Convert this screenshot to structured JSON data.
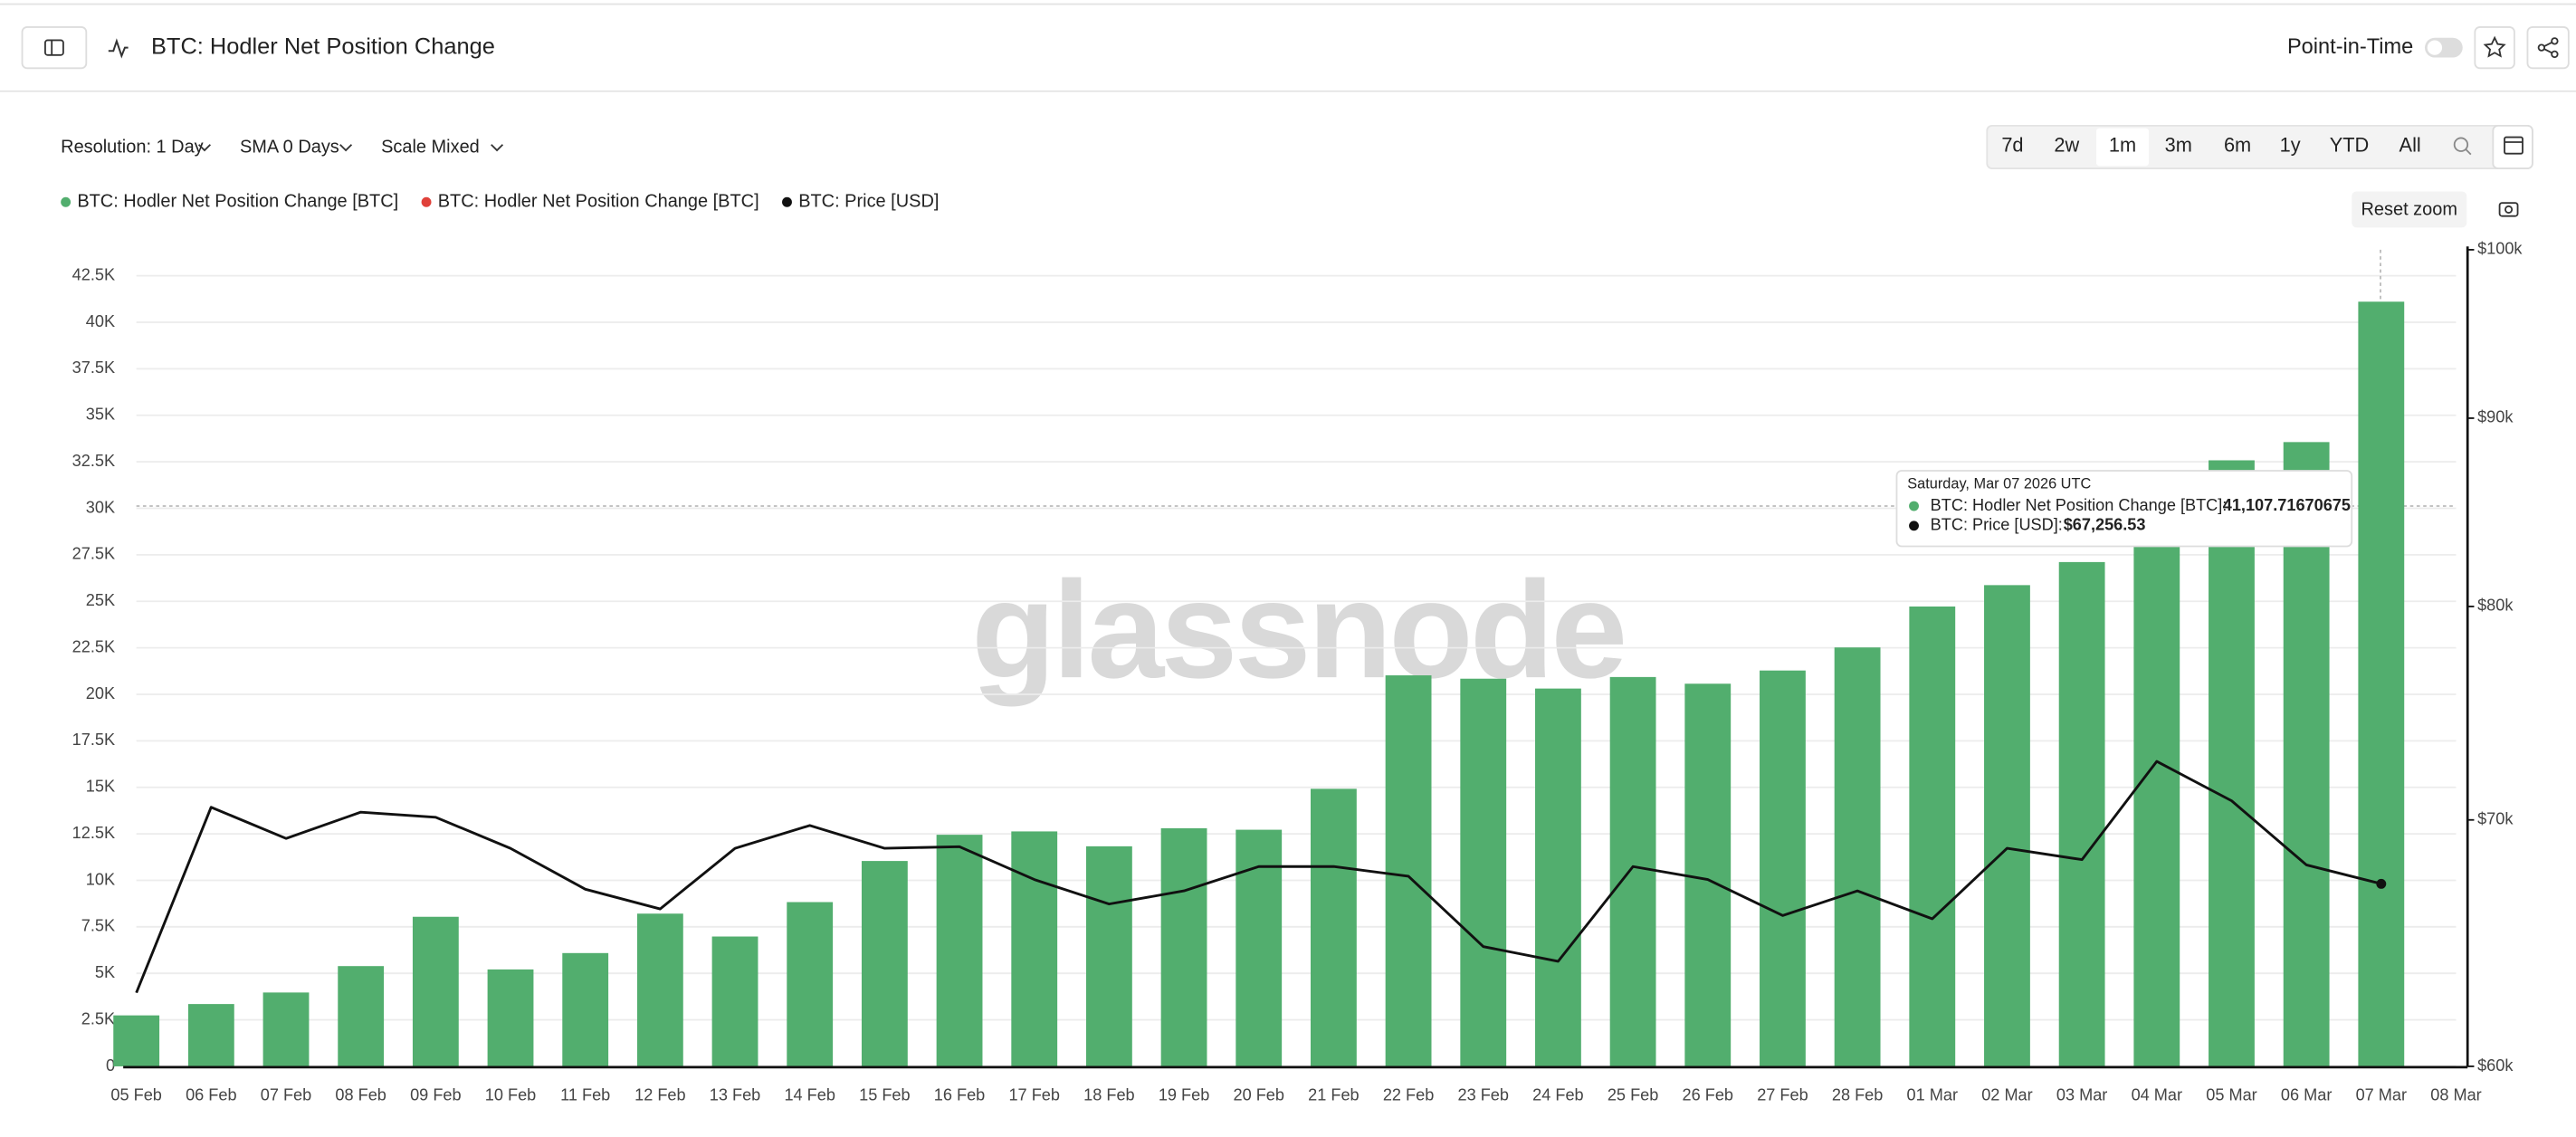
{
  "header": {
    "title": "BTC: Hodler Net Position Change",
    "point_in_time": "Point-in-Time"
  },
  "controls": {
    "resolution": "Resolution: 1 Day",
    "sma": "SMA 0 Days",
    "scale": "Scale Mixed",
    "ranges": [
      "7d",
      "2w",
      "1m",
      "3m",
      "6m",
      "1y",
      "YTD",
      "All"
    ],
    "active_range": "1m",
    "reset_zoom": "Reset zoom"
  },
  "watermark": "glassnode",
  "tooltip": {
    "title": "Saturday, Mar 07 2026 UTC",
    "rows": [
      {
        "name": "BTC: Hodler Net Position Change [BTC]:",
        "value": "41,107.71670675"
      },
      {
        "name": "BTC: Price [USD]:",
        "value": "$67,256.53"
      }
    ]
  },
  "chart_data": {
    "type": "bar",
    "categories": [
      "05 Feb",
      "06 Feb",
      "07 Feb",
      "08 Feb",
      "09 Feb",
      "10 Feb",
      "11 Feb",
      "12 Feb",
      "13 Feb",
      "14 Feb",
      "15 Feb",
      "16 Feb",
      "17 Feb",
      "18 Feb",
      "19 Feb",
      "20 Feb",
      "21 Feb",
      "22 Feb",
      "23 Feb",
      "24 Feb",
      "25 Feb",
      "26 Feb",
      "27 Feb",
      "28 Feb",
      "01 Mar",
      "02 Mar",
      "03 Mar",
      "04 Mar",
      "05 Mar",
      "06 Mar",
      "07 Mar",
      "08 Mar"
    ],
    "series": [
      {
        "name": "BTC: Hodler Net Position Change [BTC]",
        "color": "#52ae6e",
        "type": "bar",
        "values": [
          2740,
          3350,
          3970,
          5390,
          8040,
          5210,
          6090,
          8210,
          6980,
          8830,
          11040,
          12450,
          12630,
          11830,
          12800,
          12720,
          14920,
          21020,
          20840,
          20310,
          20930,
          20570,
          21280,
          22520,
          24720,
          25870,
          27110,
          28600,
          32580,
          33560,
          41107.71670675,
          null
        ]
      },
      {
        "name": "BTC: Hodler Net Position Change [BTC]",
        "color": "#e0413a",
        "type": "bar",
        "values": [
          null,
          null,
          null,
          null,
          null,
          null,
          null,
          null,
          null,
          null,
          null,
          null,
          null,
          null,
          null,
          null,
          null,
          null,
          null,
          null,
          null,
          null,
          null,
          null,
          null,
          null,
          null,
          null,
          null,
          null,
          null,
          null
        ]
      },
      {
        "name": "BTC: Price [USD]",
        "color": "#111111",
        "type": "line",
        "axis": "y2",
        "values": [
          62830,
          70560,
          69190,
          70340,
          70120,
          68770,
          67030,
          66210,
          68770,
          69760,
          68770,
          68840,
          67440,
          66410,
          66960,
          67990,
          67990,
          67580,
          64670,
          64070,
          67990,
          67440,
          65940,
          66960,
          65800,
          68770,
          68280,
          72610,
          70840,
          68060,
          67256.53,
          null
        ]
      }
    ],
    "ylim": [
      0,
      43900
    ],
    "yticks": [
      0,
      {
        "value": 2500,
        "label": "2.5K"
      },
      {
        "value": 5000,
        "label": "5K"
      },
      {
        "value": 7500,
        "label": "7.5K"
      },
      {
        "value": 10000,
        "label": "10K"
      },
      {
        "value": 12500,
        "label": "12.5K"
      },
      {
        "value": 15000,
        "label": "15K"
      },
      {
        "value": 17500,
        "label": "17.5K"
      },
      {
        "value": 20000,
        "label": "20K"
      },
      {
        "value": 22500,
        "label": "22.5K"
      },
      {
        "value": 25000,
        "label": "25K"
      },
      {
        "value": 27500,
        "label": "27.5K"
      },
      {
        "value": 30000,
        "label": "30K"
      },
      {
        "value": 32500,
        "label": "32.5K"
      },
      {
        "value": 35000,
        "label": "35K"
      },
      {
        "value": 37500,
        "label": "37.5K"
      },
      {
        "value": 40000,
        "label": "40K"
      },
      {
        "value": 42500,
        "label": "42.5K"
      }
    ],
    "y2lim": [
      60000,
      100000
    ],
    "y2log": true,
    "y2ticks": [
      {
        "value": 60000,
        "label": "$60k"
      },
      {
        "value": 70000,
        "label": "$70k"
      },
      {
        "value": 80000,
        "label": "$80k"
      },
      {
        "value": 90000,
        "label": "$90k"
      },
      {
        "value": 100000,
        "label": "$100k"
      }
    ],
    "grid": true
  }
}
